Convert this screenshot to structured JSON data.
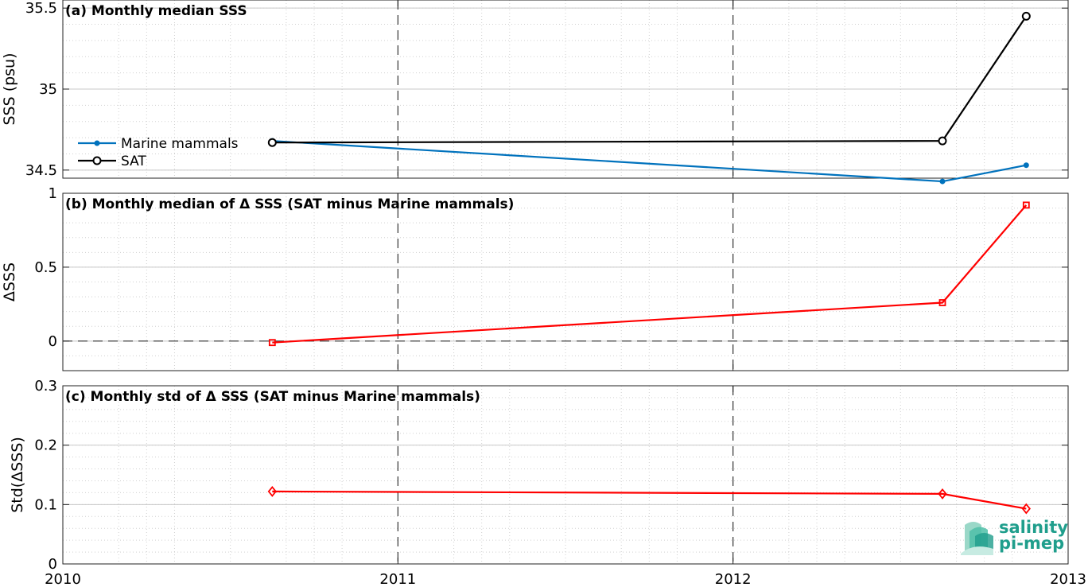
{
  "chart_data": [
    {
      "type": "line",
      "title": "(a) Monthly median SSS",
      "ylabel": "SSS (psu)",
      "xlim": [
        2010,
        2013
      ],
      "ylim": [
        34.45,
        35.55
      ],
      "yticks": [
        34.5,
        35,
        35.5
      ],
      "ytick_labels": [
        "34.5",
        "35",
        "35.5"
      ],
      "series": [
        {
          "name": "Marine mammals",
          "color": "#0072bd",
          "marker": "dot",
          "x": [
            2010.625,
            2012.625,
            2012.875
          ],
          "y": [
            34.68,
            34.43,
            34.53
          ]
        },
        {
          "name": "SAT",
          "color": "#000000",
          "marker": "circle",
          "x": [
            2010.625,
            2012.625,
            2012.875
          ],
          "y": [
            34.67,
            34.68,
            35.45
          ]
        }
      ],
      "legend": "center-left"
    },
    {
      "type": "line",
      "title": "(b) Monthly median of Δ SSS (SAT minus Marine mammals)",
      "ylabel": "ΔSSS",
      "xlim": [
        2010,
        2013
      ],
      "ylim": [
        -0.2,
        1
      ],
      "yticks": [
        0,
        0.5,
        1
      ],
      "ytick_labels": [
        "0",
        "0.5",
        "1"
      ],
      "zero_line": true,
      "series": [
        {
          "color": "#ff0000",
          "marker": "square",
          "x": [
            2010.625,
            2012.625,
            2012.875
          ],
          "y": [
            -0.01,
            0.26,
            0.92
          ]
        }
      ]
    },
    {
      "type": "line",
      "title": "(c) Monthly std of Δ SSS (SAT minus Marine mammals)",
      "ylabel": "Std(ΔSSS)",
      "xlim": [
        2010,
        2013
      ],
      "ylim": [
        0,
        0.3
      ],
      "yticks": [
        0,
        0.1,
        0.2,
        0.3
      ],
      "ytick_labels": [
        "0",
        "0.1",
        "0.2",
        "0.3"
      ],
      "xticks": [
        2010,
        2011,
        2012,
        2013
      ],
      "xtick_labels": [
        "2010",
        "2011",
        "2012",
        "2013"
      ],
      "series": [
        {
          "color": "#ff0000",
          "marker": "diamond",
          "x": [
            2010.625,
            2012.625,
            2012.875
          ],
          "y": [
            0.122,
            0.118,
            0.093
          ]
        }
      ]
    }
  ],
  "logo": {
    "line1": "salinity",
    "line2": "pi-mep"
  }
}
